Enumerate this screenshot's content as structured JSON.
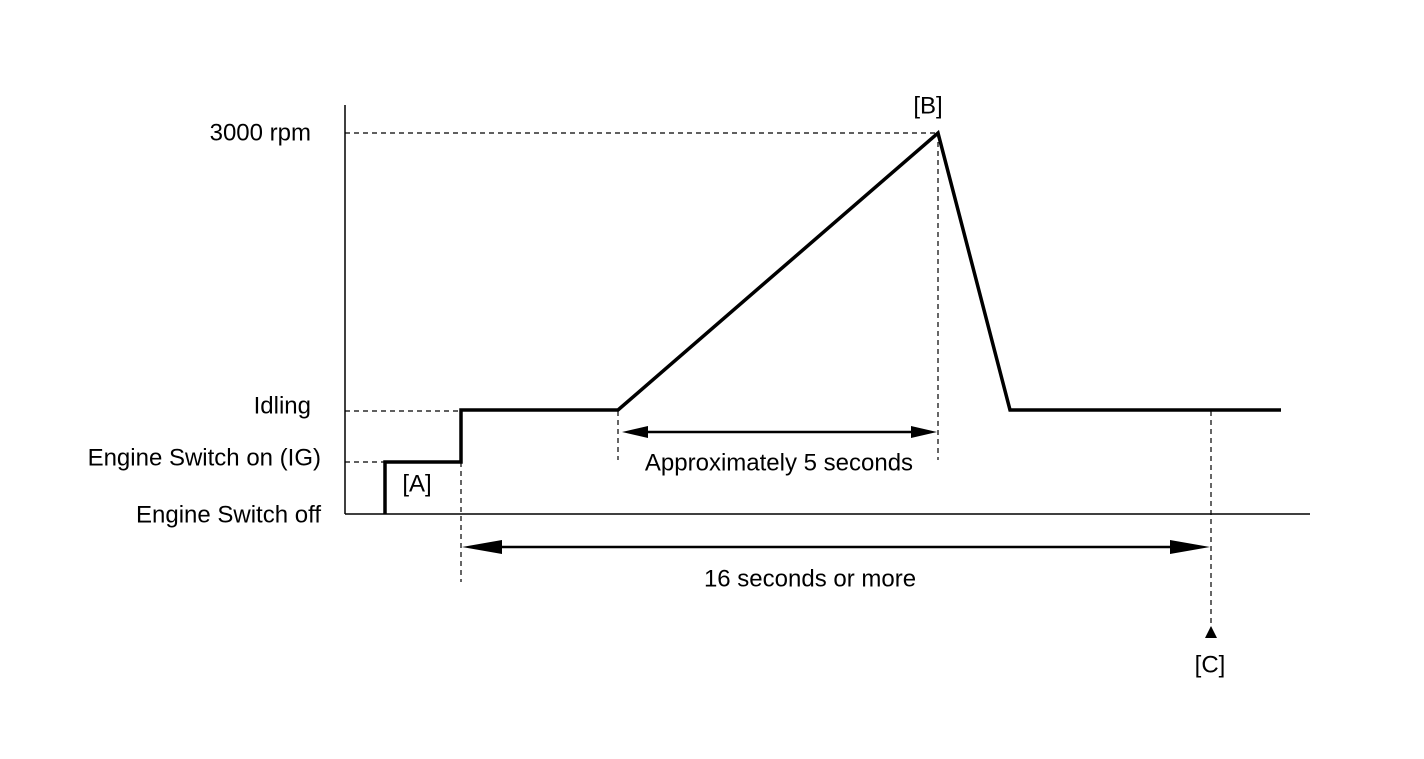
{
  "levels": [
    "3000 rpm",
    "Idling",
    "Engine Switch on (IG)",
    "Engine Switch off"
  ],
  "markers": [
    "[A]",
    "[B]",
    "[C]"
  ],
  "durations": [
    "Approximately 5 seconds",
    "16 seconds or more"
  ]
}
